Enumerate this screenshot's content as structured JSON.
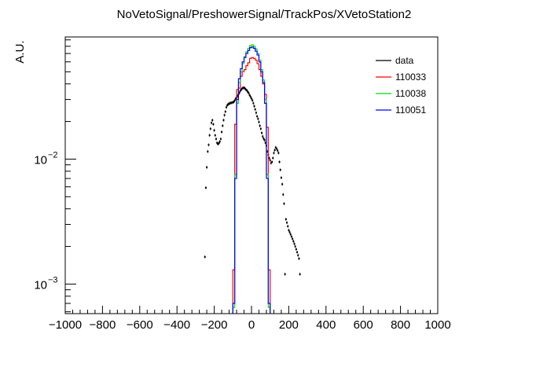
{
  "chart_data": {
    "type": "histogram",
    "title": "NoVetoSignal/PreshowerSignal/TrackPos/XVetoStation2",
    "xlabel": "",
    "ylabel": "A.U.",
    "xlim": [
      -1000,
      1000
    ],
    "ylim": [
      0.00058,
      0.095
    ],
    "y_scale": "log",
    "grid": false,
    "legend_position": "top-right",
    "x_ticks": [
      "−1000",
      "−800",
      "−600",
      "−400",
      "−200",
      "0",
      "200",
      "400",
      "600",
      "800",
      "1000"
    ],
    "y_ticks": [
      {
        "value": 0.01,
        "base": "10",
        "exp": "−2"
      },
      {
        "value": 0.001,
        "base": "10",
        "exp": "−3"
      }
    ],
    "bin_edges": [
      -100,
      -90,
      -80,
      -70,
      -60,
      -50,
      -40,
      -30,
      -20,
      -10,
      0,
      10,
      20,
      30,
      40,
      50,
      60,
      70,
      80,
      90,
      100
    ],
    "series": [
      {
        "name": "data",
        "kind": "points",
        "color": "#000000",
        "x": [
          -250,
          -245,
          -240,
          -235,
          -230,
          -225,
          -220,
          -215,
          -210,
          -205,
          -200,
          -195,
          -190,
          -185,
          -180,
          -175,
          -170,
          -165,
          -160,
          -155,
          -150,
          -145,
          -140,
          -135,
          -130,
          -125,
          -120,
          -115,
          -110,
          -105,
          -100,
          -95,
          -90,
          -85,
          -80,
          -75,
          -70,
          -65,
          -60,
          -55,
          -50,
          -45,
          -40,
          -35,
          -30,
          -25,
          -20,
          -15,
          -10,
          -5,
          0,
          5,
          10,
          15,
          20,
          25,
          30,
          35,
          40,
          45,
          50,
          55,
          60,
          65,
          70,
          75,
          80,
          85,
          90,
          95,
          100,
          105,
          110,
          115,
          120,
          125,
          130,
          135,
          140,
          145,
          150,
          155,
          160,
          165,
          170,
          175,
          180,
          185,
          190,
          195,
          200,
          205,
          210,
          215,
          220,
          225,
          230,
          235,
          240,
          245,
          250,
          255,
          260
        ],
        "y": [
          0.00165,
          0.0059,
          0.0086,
          0.0115,
          0.013,
          0.0155,
          0.0175,
          0.0195,
          0.0205,
          0.019,
          0.017,
          0.0155,
          0.0145,
          0.0135,
          0.0132,
          0.0134,
          0.0138,
          0.0145,
          0.0165,
          0.0185,
          0.0205,
          0.0225,
          0.024,
          0.026,
          0.027,
          0.0275,
          0.0278,
          0.028,
          0.0282,
          0.0283,
          0.0285,
          0.0287,
          0.0295,
          0.0305,
          0.031,
          0.032,
          0.033,
          0.034,
          0.0352,
          0.036,
          0.0368,
          0.0372,
          0.0372,
          0.0368,
          0.036,
          0.0355,
          0.0345,
          0.0338,
          0.0325,
          0.0315,
          0.0305,
          0.0295,
          0.028,
          0.0265,
          0.025,
          0.0235,
          0.022,
          0.021,
          0.0198,
          0.0185,
          0.0175,
          0.0162,
          0.0152,
          0.0146,
          0.0142,
          0.0135,
          0.0128,
          0.0115,
          0.0108,
          0.0102,
          0.0098,
          0.0093,
          0.0095,
          0.0102,
          0.0112,
          0.0118,
          0.0124,
          0.0121,
          0.0117,
          0.0112,
          0.0095,
          0.0082,
          0.0071,
          0.0063,
          0.0052,
          0.0044,
          0.0012,
          0.0033,
          0.0031,
          0.0029,
          0.0027,
          0.0026,
          0.0025,
          0.0024,
          0.0023,
          0.0022,
          0.0021,
          0.002,
          0.0019,
          0.0018,
          0.0017,
          0.0016,
          0.0012
        ],
        "note_visible_points_only": true
      },
      {
        "name": "110033",
        "kind": "step",
        "color": "#ff0000",
        "values": [
          0.0013,
          0.019,
          0.036,
          0.037,
          0.046,
          0.05,
          0.052,
          0.056,
          0.059,
          0.064,
          0.065,
          0.064,
          0.062,
          0.058,
          0.052,
          0.046,
          0.04,
          0.033,
          0.018,
          0.0013
        ]
      },
      {
        "name": "110038",
        "kind": "step",
        "color": "#00dd00",
        "values": [
          0.00065,
          0.0075,
          0.028,
          0.041,
          0.05,
          0.058,
          0.066,
          0.072,
          0.077,
          0.081,
          0.082,
          0.08,
          0.076,
          0.07,
          0.062,
          0.052,
          0.043,
          0.03,
          0.0075,
          0.00065
        ]
      },
      {
        "name": "110051",
        "kind": "step",
        "color": "#0000ff",
        "values": [
          0.0007,
          0.007,
          0.03,
          0.044,
          0.053,
          0.06,
          0.065,
          0.07,
          0.074,
          0.078,
          0.079,
          0.077,
          0.073,
          0.068,
          0.06,
          0.05,
          0.041,
          0.028,
          0.007,
          0.0007
        ]
      }
    ]
  }
}
